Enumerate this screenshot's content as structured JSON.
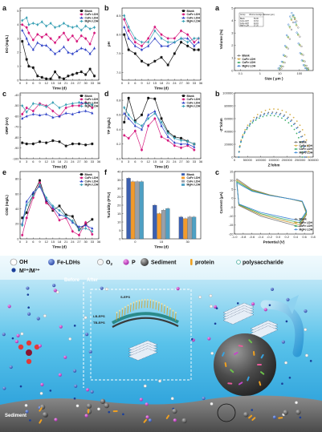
{
  "chart_data": [
    {
      "id": "DO",
      "label": "a",
      "type": "line",
      "ylabel": "DO (mg/L)",
      "xlabel": "Time (d)",
      "xticks": [
        0,
        3,
        6,
        9,
        12,
        15,
        18,
        21,
        24,
        27,
        30,
        33,
        36
      ],
      "xlim": [
        0,
        36
      ],
      "yticks": [
        0,
        1,
        2,
        3,
        4,
        5
      ],
      "ylim": [
        0,
        5.2
      ],
      "x": [
        1,
        3,
        4,
        6,
        8,
        10,
        12,
        14,
        16,
        18,
        20,
        22,
        24,
        26,
        28,
        30,
        32,
        34
      ],
      "series": [
        {
          "name": "Blank",
          "color": "#111111",
          "marker": "square",
          "values": [
            2.8,
            1.5,
            1.0,
            0.9,
            0.3,
            0.2,
            0.1,
            0.1,
            0.6,
            0.2,
            0.1,
            0.3,
            0.4,
            0.5,
            0.6,
            0.4,
            0.8,
            0.3
          ]
        },
        {
          "name": "CuFe LDH",
          "color": "#d6197d",
          "marker": "circle",
          "values": [
            4.0,
            3.8,
            3.4,
            2.9,
            3.3,
            3.1,
            3.3,
            3.0,
            2.7,
            3.1,
            3.4,
            2.9,
            3.2,
            2.8,
            3.2,
            3.0,
            2.6,
            3.4
          ]
        },
        {
          "name": "CoFe LDH",
          "color": "#2b3fc6",
          "marker": "triangle",
          "values": [
            3.6,
            3.0,
            2.6,
            2.2,
            2.7,
            2.5,
            2.5,
            2.2,
            1.9,
            2.1,
            2.4,
            2.0,
            1.9,
            2.1,
            2.3,
            2.2,
            1.9,
            2.3
          ]
        },
        {
          "name": "MgFe LDH",
          "color": "#3aa1b5",
          "marker": "diamond",
          "values": [
            4.3,
            4.5,
            4.0,
            4.1,
            4.0,
            4.2,
            3.9,
            4.1,
            3.8,
            3.9,
            4.1,
            3.9,
            3.8,
            3.9,
            3.6,
            3.9,
            3.7,
            3.8
          ]
        }
      ]
    },
    {
      "id": "pH",
      "label": "b",
      "type": "line",
      "ylabel": "pH",
      "xlabel": "Time (d)",
      "xticks": [
        0,
        3,
        6,
        9,
        12,
        15,
        18,
        21,
        24,
        27,
        30,
        33,
        36
      ],
      "xlim": [
        0,
        36
      ],
      "yticks": [
        7.0,
        7.5,
        8.0,
        8.5
      ],
      "ylim": [
        6.8,
        8.7
      ],
      "x": [
        1,
        3,
        6,
        9,
        12,
        15,
        18,
        21,
        24,
        27,
        30,
        33,
        35
      ],
      "series": [
        {
          "name": "Blank",
          "color": "#111111",
          "marker": "square",
          "values": [
            8.0,
            7.6,
            7.5,
            7.3,
            7.2,
            7.3,
            7.4,
            7.2,
            7.5,
            7.8,
            7.7,
            7.6,
            7.6
          ]
        },
        {
          "name": "CuFe LDH",
          "color": "#d6197d",
          "marker": "circle",
          "values": [
            8.4,
            8.1,
            7.8,
            7.7,
            7.9,
            8.2,
            8.0,
            7.9,
            7.9,
            8.1,
            8.0,
            7.8,
            7.9
          ]
        },
        {
          "name": "CoFe LDH",
          "color": "#2b3fc6",
          "marker": "triangle",
          "values": [
            8.2,
            7.9,
            7.7,
            7.6,
            7.7,
            7.9,
            7.7,
            7.7,
            7.8,
            7.9,
            7.9,
            7.7,
            7.8
          ]
        },
        {
          "name": "MgFe LDH",
          "color": "#3aa1b5",
          "marker": "diamond",
          "values": [
            8.5,
            8.2,
            7.9,
            7.8,
            7.8,
            8.1,
            7.9,
            7.8,
            7.8,
            7.9,
            7.8,
            7.9,
            7.9
          ]
        }
      ]
    },
    {
      "id": "ORP",
      "label": "c",
      "type": "line",
      "ylabel": "ORP (mV)",
      "xlabel": "Time (d)",
      "xticks": [
        0,
        3,
        6,
        9,
        12,
        15,
        18,
        21,
        24,
        27,
        30,
        33,
        36
      ],
      "xlim": [
        0,
        36
      ],
      "yticks": [
        -100,
        -90,
        -80,
        -70,
        -60,
        -50,
        -40
      ],
      "ylim": [
        -100,
        -38
      ],
      "x": [
        1,
        3,
        6,
        9,
        12,
        15,
        18,
        21,
        24,
        27,
        30,
        33
      ],
      "series": [
        {
          "name": "Blank",
          "color": "#111111",
          "marker": "square",
          "values": [
            -85,
            -86,
            -86,
            -84,
            -85,
            -83,
            -84,
            -88,
            -86,
            -86,
            -87,
            -86
          ]
        },
        {
          "name": "CuFe LDH",
          "color": "#d6197d",
          "marker": "circle",
          "values": [
            -58,
            -52,
            -55,
            -48,
            -50,
            -55,
            -60,
            -52,
            -50,
            -50,
            -47,
            -52
          ]
        },
        {
          "name": "CoFe LDH",
          "color": "#2b3fc6",
          "marker": "triangle",
          "values": [
            -62,
            -60,
            -58,
            -59,
            -58,
            -61,
            -60,
            -57,
            -58,
            -56,
            -55,
            -57
          ]
        },
        {
          "name": "MgFe LDH",
          "color": "#3aa1b5",
          "marker": "diamond",
          "values": [
            -50,
            -56,
            -48,
            -49,
            -51,
            -47,
            -52,
            -49,
            -48,
            -47,
            -48,
            -49
          ]
        }
      ]
    },
    {
      "id": "TP",
      "label": "d",
      "type": "line",
      "ylabel": "TP (mg/L)",
      "xlabel": "Time (d)",
      "xticks": [
        0,
        3,
        6,
        9,
        12,
        15,
        18,
        21,
        24,
        27,
        30,
        33,
        36
      ],
      "xlim": [
        0,
        36
      ],
      "yticks": [
        0.0,
        0.2,
        0.4,
        0.6,
        0.8
      ],
      "ylim": [
        0,
        0.9
      ],
      "x": [
        1,
        3,
        6,
        9,
        12,
        15,
        18,
        21,
        24,
        27,
        30,
        33
      ],
      "series": [
        {
          "name": "Blank",
          "color": "#111111",
          "marker": "square",
          "values": [
            0.5,
            0.83,
            0.52,
            0.6,
            0.83,
            0.82,
            0.55,
            0.37,
            0.3,
            0.28,
            0.24,
            0.2
          ]
        },
        {
          "name": "CuFe LDH",
          "color": "#d6197d",
          "marker": "circle",
          "values": [
            0.32,
            0.28,
            0.38,
            0.12,
            0.45,
            0.55,
            0.3,
            0.25,
            0.18,
            0.15,
            0.18,
            0.12
          ]
        },
        {
          "name": "CoFe LDH",
          "color": "#2b3fc6",
          "marker": "triangle",
          "values": [
            0.62,
            0.55,
            0.45,
            0.4,
            0.6,
            0.65,
            0.45,
            0.3,
            0.22,
            0.2,
            0.2,
            0.16
          ]
        },
        {
          "name": "MgFe LDH",
          "color": "#3aa1b5",
          "marker": "diamond",
          "values": [
            0.7,
            0.6,
            0.5,
            0.45,
            0.55,
            0.62,
            0.5,
            0.35,
            0.28,
            0.25,
            0.24,
            0.2
          ]
        }
      ]
    },
    {
      "id": "COD",
      "label": "e",
      "type": "line",
      "ylabel": "COD (mg/L)",
      "xlabel": "Time (d)",
      "xticks": [
        0,
        3,
        6,
        9,
        12,
        15,
        18,
        21,
        24,
        27,
        30,
        33,
        36
      ],
      "xlim": [
        0,
        36
      ],
      "yticks": [
        0,
        20,
        40,
        60,
        80
      ],
      "ylim": [
        0,
        90
      ],
      "x": [
        1,
        3,
        6,
        9,
        12,
        15,
        18,
        21,
        24,
        27,
        30,
        33
      ],
      "series": [
        {
          "name": "Blank",
          "color": "#111111",
          "marker": "square",
          "values": [
            28,
            35,
            60,
            78,
            50,
            38,
            44,
            32,
            30,
            12,
            20,
            26
          ]
        },
        {
          "name": "CuFe LDH",
          "color": "#d6197d",
          "marker": "circle",
          "values": [
            5,
            28,
            55,
            75,
            48,
            40,
            25,
            28,
            10,
            5,
            22,
            6
          ]
        },
        {
          "name": "CoFe LDH",
          "color": "#2b3fc6",
          "marker": "triangle",
          "values": [
            20,
            50,
            62,
            70,
            52,
            42,
            32,
            30,
            22,
            16,
            18,
            14
          ]
        },
        {
          "name": "MgFe LDH",
          "color": "#3aa1b5",
          "marker": "diamond",
          "values": [
            18,
            45,
            58,
            72,
            55,
            44,
            38,
            30,
            24,
            12,
            14,
            10
          ]
        }
      ]
    },
    {
      "id": "Turbidity",
      "label": "f",
      "type": "bar",
      "ylabel": "Turbidity (FTU)",
      "xlabel": "Time (d)",
      "categories": [
        "0",
        "15",
        "30"
      ],
      "yticks": [
        0,
        5,
        10,
        15,
        20,
        25,
        30,
        35,
        40
      ],
      "ylim": [
        0,
        40
      ],
      "series": [
        {
          "name": "Blank",
          "color": "#3b5fb0",
          "values": [
            36,
            20,
            13
          ]
        },
        {
          "name": "CuFe LDH",
          "color": "#f39a2b",
          "values": [
            34,
            15,
            12
          ]
        },
        {
          "name": "CoFe LDH",
          "color": "#9aa0a8",
          "values": [
            34,
            17,
            13
          ]
        },
        {
          "name": "MgFe LDH",
          "color": "#4ea0c4",
          "values": [
            34,
            18,
            13
          ]
        }
      ]
    },
    {
      "id": "Size",
      "label": "a",
      "type": "area",
      "ylabel": "Volume (%)",
      "xlabel": "Size ( μm )",
      "x_scale": "log",
      "xticks": [
        "0.1",
        "1",
        "10",
        "100"
      ],
      "yticks": [
        0,
        1,
        2,
        3,
        4,
        5
      ],
      "ylim": [
        0,
        5
      ],
      "table": {
        "headers": [
          "Group",
          "Volume average diameter (μm)"
        ],
        "rows": [
          [
            "Blank",
            "56.96"
          ],
          [
            "CuFe LDH",
            "43.64"
          ],
          [
            "CoFe LDH",
            "43.15"
          ],
          [
            "MgFe LDH",
            "37.20"
          ]
        ]
      },
      "series": [
        {
          "name": "Blank",
          "color": "#7a7a7a",
          "peak_x": 60,
          "peak_y": 4.1
        },
        {
          "name": "CuFe LDH",
          "color": "#c99a2e",
          "peak_x": 50,
          "peak_y": 4.3
        },
        {
          "name": "CoFe LDH",
          "color": "#2fa35a",
          "peak_x": 48,
          "peak_y": 4.4
        },
        {
          "name": "MgFe LDH",
          "color": "#3377cc",
          "peak_x": 42,
          "peak_y": 4.6
        }
      ]
    },
    {
      "id": "EIS",
      "label": "b",
      "type": "scatter",
      "ylabel": "-Z''/ohm",
      "xlabel": "Z'/ohm",
      "xticks": [
        0,
        50000,
        100000,
        150000,
        200000,
        250000,
        300000
      ],
      "xlim": [
        0,
        300000
      ],
      "yticks": [
        0,
        20000,
        40000,
        60000,
        80000,
        100000
      ],
      "ylim": [
        0,
        100000
      ],
      "series": [
        {
          "name": "Blank",
          "color": "#7a7a7a",
          "x_end": 270000,
          "peak": 70000
        },
        {
          "name": "CuFe LDH",
          "color": "#d8b048",
          "x_end": 280000,
          "peak": 75000
        },
        {
          "name": "CoFe LDH",
          "color": "#3fb06a",
          "x_end": 255000,
          "peak": 65000
        },
        {
          "name": "MgFe LDH",
          "color": "#3b86d6",
          "x_end": 265000,
          "peak": 68000
        }
      ]
    },
    {
      "id": "CV",
      "label": "c",
      "type": "line",
      "ylabel": "Current (μA)",
      "xlabel": "Potential (V)",
      "xticks": [
        "-1.0",
        "-0.8",
        "-0.6",
        "-0.4",
        "-0.2",
        "0.0",
        "0.2",
        "0.4",
        "0.6",
        "0.8"
      ],
      "xlim": [
        -1.0,
        0.8
      ],
      "yticks": [
        -20,
        -15,
        -10,
        -5,
        0,
        5,
        10,
        15
      ],
      "ylim": [
        -20,
        15
      ],
      "series": [
        {
          "name": "Blank",
          "color": "#7a7a7a",
          "scale": 1.0
        },
        {
          "name": "CuFe LDH",
          "color": "#c99a2e",
          "scale": 0.93
        },
        {
          "name": "CoFe LDH",
          "color": "#2fa35a",
          "scale": 0.86
        },
        {
          "name": "MgFe LDH",
          "color": "#3b86d6",
          "scale": 0.79
        }
      ]
    }
  ],
  "scheme": {
    "legend": {
      "oh": "OH",
      "metal": "M²⁺/M³⁺",
      "fe_ldh": "Fe-LDHs",
      "o2": "O",
      "o2_sub": "2",
      "p": "P",
      "sediment": "Sediment",
      "protein": "protein",
      "polysaccharide": "polysaccharide"
    },
    "before_label": "Before",
    "after_label": "After",
    "eps_layers": [
      "S-EPS",
      "LB-EPS",
      "TB-EPS"
    ],
    "bottom_label": "Sediment"
  }
}
